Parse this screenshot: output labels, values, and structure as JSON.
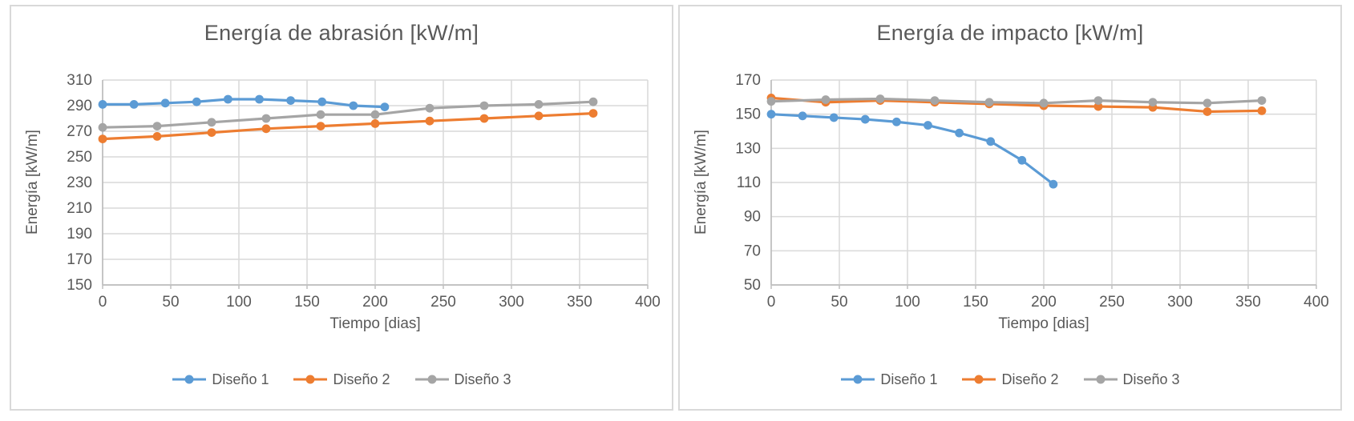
{
  "styles": {
    "background": "#FFFFFF",
    "panel_border_color": "#D9D9D9",
    "gridline_color": "#D9D9D9",
    "axis_color": "#BFBFBF",
    "text_color": "#595959",
    "series_colors": [
      "#5B9BD5",
      "#ED7D31",
      "#A5A5A5"
    ]
  },
  "chart_data": [
    {
      "type": "line",
      "title": "Energía de abrasión [kW/m]",
      "xlabel": "Tiempo [dias]",
      "ylabel": "Energía [kW/m]",
      "xlim": [
        0,
        400
      ],
      "ylim": [
        150,
        310
      ],
      "xticks": [
        0,
        50,
        100,
        150,
        200,
        250,
        300,
        350,
        400
      ],
      "yticks": [
        150,
        170,
        190,
        210,
        230,
        250,
        270,
        290,
        310
      ],
      "grid": true,
      "legend_position": "bottom",
      "series": [
        {
          "name": "Diseño 1",
          "color": "#5B9BD5",
          "x": [
            0,
            23,
            46,
            69,
            92,
            115,
            138,
            161,
            184,
            207
          ],
          "y": [
            291,
            291,
            292,
            293,
            295,
            295,
            294,
            293,
            290,
            289
          ]
        },
        {
          "name": "Diseño 2",
          "color": "#ED7D31",
          "x": [
            0,
            40,
            80,
            120,
            160,
            200,
            240,
            280,
            320,
            360
          ],
          "y": [
            264,
            266,
            269,
            272,
            274,
            276,
            278,
            280,
            282,
            284
          ]
        },
        {
          "name": "Diseño 3",
          "color": "#A5A5A5",
          "x": [
            0,
            40,
            80,
            120,
            160,
            200,
            240,
            280,
            320,
            360
          ],
          "y": [
            273,
            274,
            277,
            280,
            283,
            283,
            288,
            290,
            291,
            293
          ]
        }
      ]
    },
    {
      "type": "line",
      "title": "Energía de impacto [kW/m]",
      "xlabel": "Tiempo [dias]",
      "ylabel": "Energía [kW/m]",
      "xlim": [
        0,
        400
      ],
      "ylim": [
        50,
        170
      ],
      "xticks": [
        0,
        50,
        100,
        150,
        200,
        250,
        300,
        350,
        400
      ],
      "yticks": [
        50,
        70,
        90,
        110,
        130,
        150,
        170
      ],
      "grid": true,
      "legend_position": "bottom",
      "series": [
        {
          "name": "Diseño 1",
          "color": "#5B9BD5",
          "x": [
            0,
            23,
            46,
            69,
            92,
            115,
            138,
            161,
            184,
            207
          ],
          "y": [
            150,
            149,
            148,
            147,
            145.5,
            143.5,
            139,
            134,
            123,
            109
          ]
        },
        {
          "name": "Diseño 2",
          "color": "#ED7D31",
          "x": [
            0,
            40,
            80,
            120,
            160,
            200,
            240,
            280,
            320,
            360
          ],
          "y": [
            159.5,
            157,
            158,
            157,
            156,
            155,
            154.5,
            154,
            151.5,
            152
          ]
        },
        {
          "name": "Diseño 3",
          "color": "#A5A5A5",
          "x": [
            0,
            40,
            80,
            120,
            160,
            200,
            240,
            280,
            320,
            360
          ],
          "y": [
            157.5,
            158.5,
            159,
            158,
            157,
            156.5,
            158,
            157,
            156.5,
            158
          ]
        }
      ]
    }
  ]
}
